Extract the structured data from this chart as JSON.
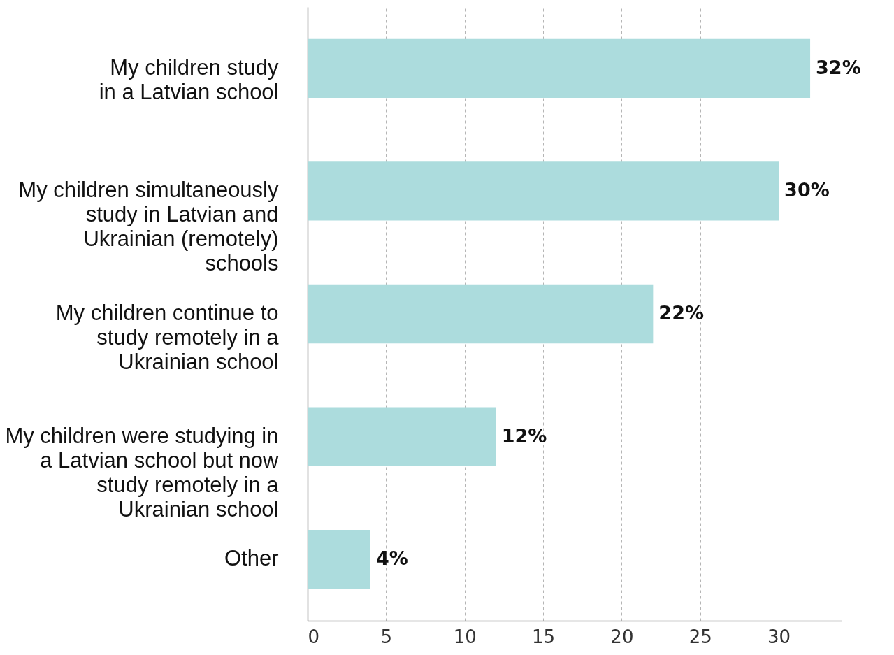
{
  "chart_data": {
    "type": "bar",
    "orientation": "horizontal",
    "categories": [
      "My children study\nin a Latvian school",
      "My children simultaneously\nstudy in Latvian and\nUkrainian (remotely)\nschools",
      "My children continue to\nstudy remotely in a\nUkrainian school",
      "My children were studying in\na Latvian school but now\nstudy remotely in a\nUkrainian school",
      "Other"
    ],
    "values": [
      32,
      30,
      22,
      12,
      4
    ],
    "value_labels": [
      "32%",
      "30%",
      "22%",
      "12%",
      "4%"
    ],
    "color": "#acdcdd",
    "xlim": [
      0,
      34
    ],
    "xticks": [
      0,
      5,
      10,
      15,
      20,
      25,
      30
    ],
    "grid": "x"
  }
}
